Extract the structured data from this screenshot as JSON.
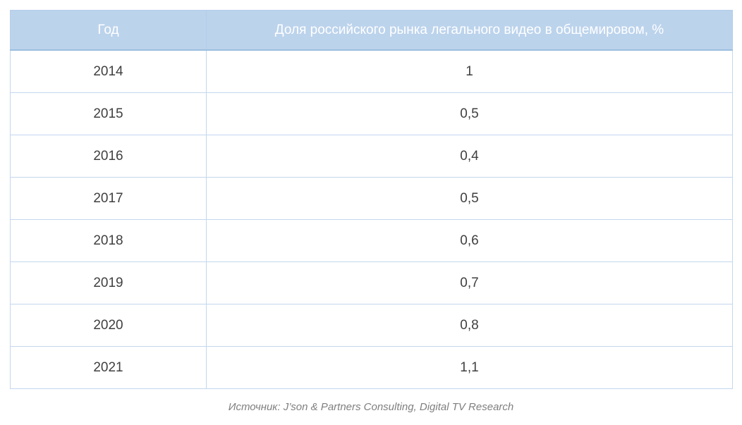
{
  "chart_data": {
    "type": "table",
    "title": "Доля российского рынка легального видео в общемировом, %",
    "columns": [
      "Год",
      "Доля российского рынка легального видео в общемировом, %"
    ],
    "rows": [
      {
        "year": "2014",
        "share": "1"
      },
      {
        "year": "2015",
        "share": "0,5"
      },
      {
        "year": "2016",
        "share": "0,4"
      },
      {
        "year": "2017",
        "share": "0,5"
      },
      {
        "year": "2018",
        "share": "0,6"
      },
      {
        "year": "2019",
        "share": "0,7"
      },
      {
        "year": "2020",
        "share": "0,8"
      },
      {
        "year": "2021",
        "share": "1,1"
      }
    ],
    "categories": [
      "2014",
      "2015",
      "2016",
      "2017",
      "2018",
      "2019",
      "2020",
      "2021"
    ],
    "values": [
      1,
      0.5,
      0.4,
      0.5,
      0.6,
      0.7,
      0.8,
      1.1
    ]
  },
  "source": "Источник: J’son & Partners Consulting, Digital TV Research",
  "colors": {
    "header_bg": "#bcd3ec",
    "header_text": "#ffffff",
    "row_border": "#c3d7ee",
    "body_text": "#3f3f3f",
    "source_text": "#7f7f7f"
  }
}
